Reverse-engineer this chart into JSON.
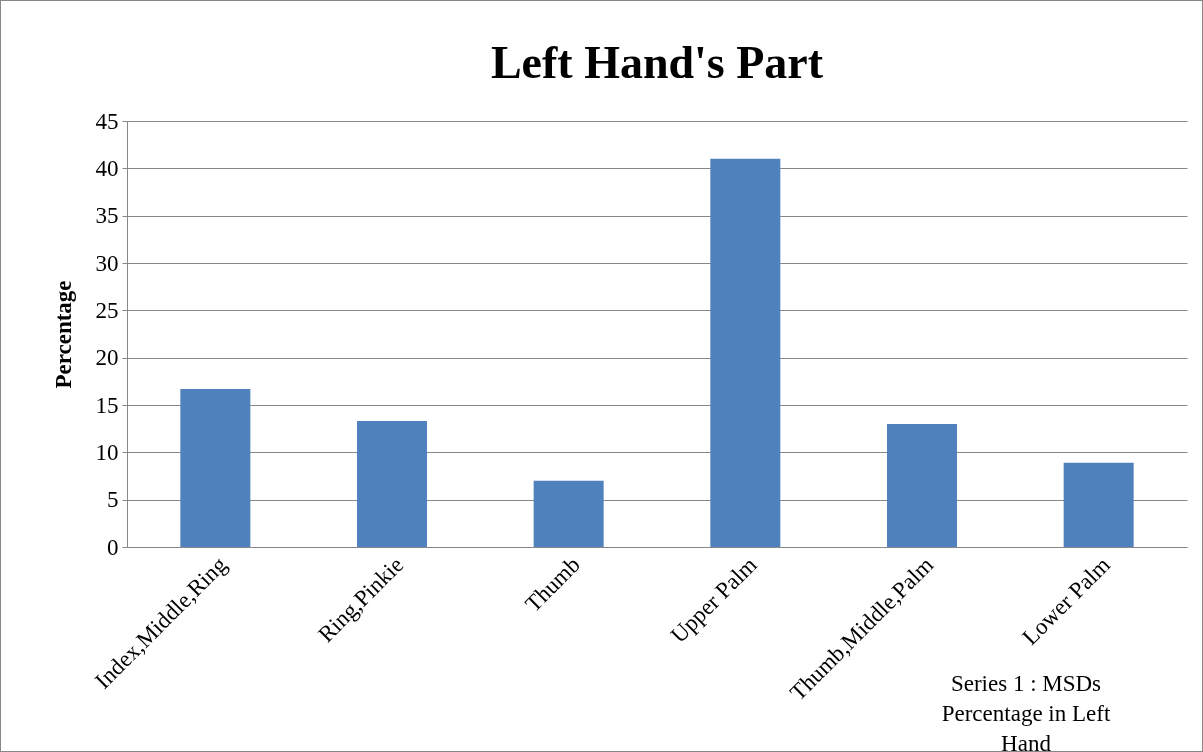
{
  "chart_data": {
    "type": "bar",
    "title": "Left Hand's Part",
    "ylabel": "Percentage",
    "categories": [
      "Index,Middle,Ring",
      "Ring,Pinkie",
      "Thumb",
      "Upper Palm",
      "Thumb,Middle,Palm",
      "Lower Palm"
    ],
    "values": [
      16.7,
      13.3,
      7,
      41,
      13,
      8.9
    ],
    "color": "#4f81bd",
    "ylim": [
      0,
      45
    ],
    "yticks": [
      0,
      5,
      10,
      15,
      20,
      25,
      30,
      35,
      40,
      45
    ],
    "grid": "y",
    "annotations": [
      "Series 1 : MSDs Percentage in Left Hand"
    ]
  }
}
